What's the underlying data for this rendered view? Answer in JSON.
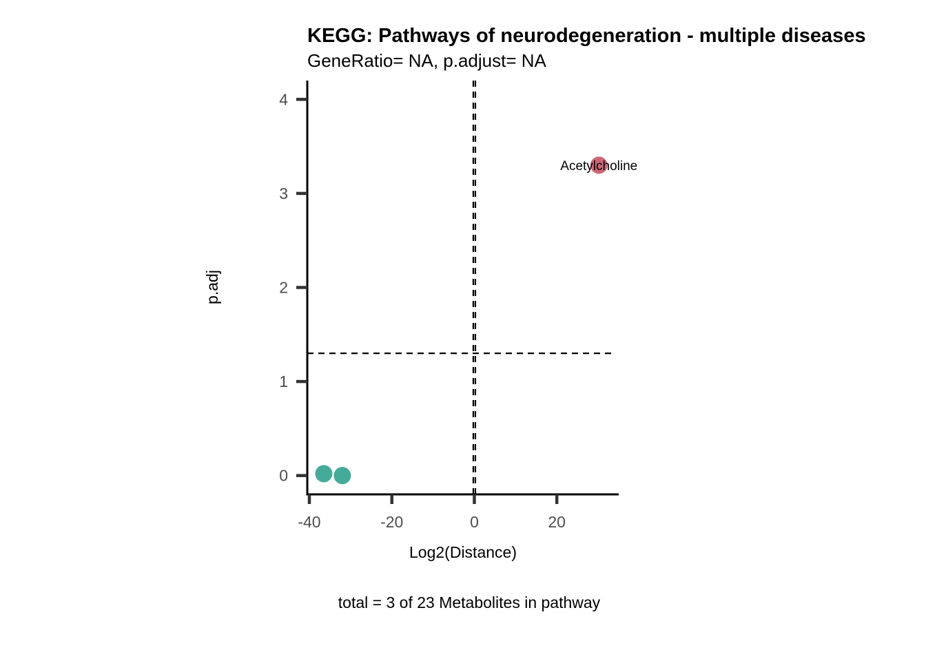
{
  "chart_data": {
    "type": "scatter",
    "title": "KEGG: Pathways of neurodegeneration - multiple diseases",
    "subtitle": "GeneRatio= NA, p.adjust= NA",
    "xlabel": "Log2(Distance)",
    "ylabel": "p.adj",
    "caption": "total = 3 of 23 Metabolites in pathway",
    "xlim": [
      -40.5,
      35
    ],
    "ylim": [
      -0.2,
      4.2
    ],
    "xticks": [
      -40,
      -20,
      0,
      20
    ],
    "xtick_labels": [
      "-40",
      "-20",
      "0",
      "20"
    ],
    "yticks": [
      0,
      1,
      2,
      3,
      4
    ],
    "ytick_labels": [
      "0",
      "1",
      "2",
      "3",
      "4"
    ],
    "grid": false,
    "reference_lines": {
      "vertical": [
        -0.25,
        0.25
      ],
      "horizontal": [
        1.3
      ]
    },
    "points": [
      {
        "x": -36.5,
        "y": 0.02,
        "color": "#44AA99",
        "label": ""
      },
      {
        "x": -32.0,
        "y": 0.0,
        "color": "#44AA99",
        "label": ""
      },
      {
        "x": 30.2,
        "y": 3.3,
        "color": "#CC6677",
        "label": "Acetylcholine"
      }
    ]
  }
}
